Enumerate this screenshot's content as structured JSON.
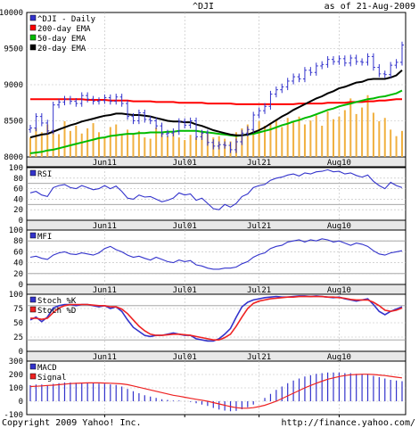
{
  "header": {
    "symbol": "^DJI",
    "as_of": "as of 21-Aug-2009"
  },
  "footer": {
    "copyright": "Copyright 2009 Yahoo! Inc.",
    "url": "http://finance.yahoo.com/"
  },
  "colors": {
    "price": "#3333cc",
    "ema200": "#ff0000",
    "ema50": "#00bb00",
    "ema20": "#000000",
    "volume": "#f0b040",
    "grid": "#bbbbbb",
    "indicator": "#3333cc",
    "signal": "#ee2222",
    "band": "#cccccc"
  },
  "chart_data": [
    {
      "type": "line",
      "panel": "price",
      "legend": [
        "^DJI - Daily",
        "200-day EMA",
        "50-day EMA",
        "20-day EMA"
      ],
      "x_ticks": [
        "Jun11",
        "Jul01",
        "Jul21",
        "Aug10"
      ],
      "ylim": [
        8000,
        10000
      ],
      "y_ticks": [
        8000,
        8500,
        9000,
        9500,
        10000
      ],
      "grid": true,
      "legend_position": "top-left",
      "series": [
        {
          "name": "^DJI - Daily",
          "style": "ohlc",
          "values": [
            8400,
            8560,
            8470,
            8360,
            8720,
            8760,
            8800,
            8770,
            8740,
            8850,
            8800,
            8770,
            8780,
            8820,
            8770,
            8830,
            8740,
            8560,
            8500,
            8610,
            8520,
            8500,
            8430,
            8320,
            8330,
            8350,
            8490,
            8440,
            8500,
            8280,
            8330,
            8200,
            8150,
            8170,
            8160,
            8100,
            8210,
            8330,
            8380,
            8580,
            8640,
            8700,
            8870,
            8930,
            8970,
            9050,
            9110,
            9080,
            9200,
            9170,
            9260,
            9280,
            9350,
            9320,
            9360,
            9300,
            9370,
            9320,
            9310,
            9390,
            9240,
            9150,
            9140,
            9270,
            9310,
            9550
          ]
        },
        {
          "name": "200-day EMA",
          "values": [
            8800,
            8800,
            8800,
            8800,
            8800,
            8800,
            8800,
            8800,
            8800,
            8800,
            8790,
            8790,
            8790,
            8790,
            8780,
            8780,
            8780,
            8780,
            8770,
            8770,
            8770,
            8770,
            8760,
            8760,
            8760,
            8760,
            8750,
            8750,
            8750,
            8750,
            8750,
            8740,
            8740,
            8740,
            8740,
            8740,
            8730,
            8730,
            8730,
            8730,
            8730,
            8730,
            8730,
            8730,
            8730,
            8730,
            8730,
            8740,
            8740,
            8740,
            8740,
            8740,
            8750,
            8750,
            8750,
            8750,
            8760,
            8760,
            8760,
            8770,
            8770,
            8780,
            8780,
            8790,
            8800,
            8800
          ]
        },
        {
          "name": "50-day EMA",
          "values": [
            8050,
            8060,
            8070,
            8090,
            8100,
            8120,
            8140,
            8160,
            8180,
            8200,
            8220,
            8240,
            8260,
            8270,
            8290,
            8300,
            8310,
            8320,
            8320,
            8330,
            8330,
            8340,
            8340,
            8340,
            8350,
            8350,
            8360,
            8360,
            8360,
            8360,
            8350,
            8340,
            8330,
            8320,
            8310,
            8300,
            8290,
            8300,
            8310,
            8320,
            8340,
            8360,
            8380,
            8410,
            8440,
            8460,
            8490,
            8510,
            8540,
            8560,
            8590,
            8620,
            8650,
            8670,
            8700,
            8720,
            8740,
            8760,
            8780,
            8800,
            8810,
            8830,
            8840,
            8860,
            8880,
            8920
          ]
        },
        {
          "name": "20-day EMA",
          "values": [
            8270,
            8290,
            8310,
            8320,
            8350,
            8380,
            8410,
            8440,
            8460,
            8490,
            8510,
            8530,
            8550,
            8570,
            8580,
            8600,
            8600,
            8590,
            8580,
            8580,
            8570,
            8560,
            8540,
            8520,
            8500,
            8490,
            8490,
            8480,
            8480,
            8450,
            8430,
            8400,
            8370,
            8350,
            8330,
            8310,
            8300,
            8300,
            8310,
            8340,
            8370,
            8410,
            8460,
            8510,
            8560,
            8600,
            8650,
            8690,
            8730,
            8770,
            8810,
            8840,
            8880,
            8910,
            8950,
            8970,
            9000,
            9030,
            9040,
            9070,
            9080,
            9080,
            9080,
            9100,
            9130,
            9200
          ]
        },
        {
          "name": "Volume",
          "values": [
            0.3,
            0.45,
            0.38,
            0.5,
            0.42,
            0.35,
            0.55,
            0.4,
            0.48,
            0.36,
            0.44,
            0.52,
            0.38,
            0.3,
            0.46,
            0.5,
            0.34,
            0.42,
            0.36,
            0.4,
            0.3,
            0.28,
            0.45,
            0.38,
            0.32,
            0.4,
            0.3,
            0.26,
            0.34,
            0.3,
            0.4,
            0.36,
            0.3,
            0.32,
            0.28,
            0.24,
            0.38,
            0.44,
            0.5,
            0.42,
            0.55,
            0.48,
            0.52,
            0.58,
            0.46,
            0.6,
            0.54,
            0.62,
            0.5,
            0.56,
            0.64,
            0.48,
            0.7,
            0.58,
            0.62,
            0.72,
            0.9,
            0.66,
            0.76,
            0.95,
            0.68,
            0.55,
            0.6,
            0.42,
            0.32,
            0.4
          ]
        }
      ]
    },
    {
      "type": "line",
      "panel": "rsi",
      "legend": [
        "RSI"
      ],
      "x_ticks": [
        "Jun11",
        "Jul01",
        "Jul21",
        "Aug10"
      ],
      "ylim": [
        0,
        100
      ],
      "y_ticks": [
        0,
        20,
        40,
        60,
        80,
        100
      ],
      "bands": [
        30,
        70
      ],
      "grid": true,
      "series": [
        {
          "name": "RSI",
          "values": [
            52,
            55,
            48,
            45,
            62,
            66,
            68,
            62,
            60,
            66,
            62,
            58,
            60,
            66,
            60,
            65,
            55,
            42,
            40,
            48,
            44,
            45,
            40,
            35,
            38,
            42,
            52,
            48,
            50,
            38,
            42,
            32,
            22,
            20,
            30,
            25,
            32,
            45,
            50,
            62,
            66,
            68,
            76,
            80,
            82,
            86,
            88,
            84,
            90,
            88,
            92,
            93,
            96,
            92,
            93,
            88,
            90,
            85,
            82,
            86,
            74,
            66,
            60,
            72,
            66,
            62
          ]
        }
      ]
    },
    {
      "type": "line",
      "panel": "mfi",
      "legend": [
        "MFI"
      ],
      "x_ticks": [
        "Jun11",
        "Jul01",
        "Jul21",
        "Aug10"
      ],
      "ylim": [
        0,
        100
      ],
      "y_ticks": [
        0,
        20,
        40,
        60,
        80,
        100
      ],
      "bands": [
        20,
        80
      ],
      "grid": true,
      "series": [
        {
          "name": "MFI",
          "values": [
            50,
            52,
            48,
            46,
            54,
            58,
            60,
            56,
            55,
            58,
            56,
            54,
            58,
            66,
            70,
            64,
            60,
            54,
            50,
            52,
            48,
            45,
            50,
            46,
            42,
            40,
            45,
            42,
            44,
            36,
            34,
            30,
            28,
            28,
            30,
            30,
            32,
            38,
            42,
            50,
            55,
            58,
            66,
            70,
            72,
            78,
            80,
            82,
            78,
            82,
            80,
            84,
            82,
            78,
            80,
            76,
            72,
            76,
            74,
            70,
            62,
            56,
            54,
            58,
            60,
            62
          ]
        }
      ]
    },
    {
      "type": "line",
      "panel": "stoch",
      "legend": [
        "Stoch %K",
        "Stoch %D"
      ],
      "x_ticks": [
        "Jun11",
        "Jul01",
        "Jul21",
        "Aug10"
      ],
      "ylim": [
        0,
        100
      ],
      "y_ticks": [
        0,
        25,
        50,
        75,
        100
      ],
      "bands": [
        20,
        80
      ],
      "grid": true,
      "series": [
        {
          "name": "Stoch %K",
          "values": [
            55,
            60,
            52,
            60,
            76,
            80,
            82,
            82,
            80,
            82,
            82,
            80,
            78,
            80,
            75,
            78,
            70,
            55,
            42,
            35,
            28,
            26,
            28,
            28,
            30,
            32,
            30,
            28,
            28,
            22,
            20,
            18,
            18,
            22,
            30,
            40,
            60,
            78,
            86,
            90,
            92,
            94,
            95,
            96,
            95,
            95,
            96,
            97,
            97,
            96,
            97,
            96,
            95,
            94,
            95,
            92,
            90,
            88,
            90,
            92,
            82,
            70,
            64,
            70,
            74,
            78
          ]
        },
        {
          "name": "Stoch %D",
          "values": [
            58,
            58,
            56,
            58,
            68,
            76,
            80,
            82,
            82,
            82,
            82,
            81,
            80,
            80,
            78,
            78,
            74,
            66,
            55,
            44,
            36,
            30,
            28,
            28,
            29,
            30,
            30,
            29,
            28,
            26,
            24,
            22,
            20,
            20,
            24,
            30,
            44,
            60,
            75,
            84,
            88,
            90,
            92,
            93,
            94,
            95,
            95,
            96,
            96,
            96,
            96,
            96,
            95,
            95,
            94,
            93,
            91,
            90,
            90,
            90,
            86,
            80,
            72,
            70,
            72,
            76
          ]
        }
      ]
    },
    {
      "type": "bar",
      "panel": "macd",
      "legend": [
        "MACD",
        "Signal"
      ],
      "x_ticks": [
        "Jun11",
        "Jul01",
        "Jul21",
        "Aug10"
      ],
      "ylim": [
        -100,
        300
      ],
      "y_ticks": [
        -100,
        0,
        100,
        200,
        300
      ],
      "grid": true,
      "series": [
        {
          "name": "MACD",
          "values": [
            120,
            125,
            125,
            120,
            130,
            135,
            140,
            140,
            138,
            140,
            138,
            135,
            132,
            130,
            126,
            122,
            110,
            92,
            75,
            60,
            45,
            35,
            25,
            15,
            10,
            5,
            5,
            0,
            -5,
            -15,
            -25,
            -35,
            -50,
            -62,
            -70,
            -75,
            -72,
            -60,
            -45,
            -25,
            0,
            25,
            55,
            85,
            110,
            135,
            155,
            170,
            185,
            195,
            205,
            210,
            215,
            215,
            215,
            210,
            210,
            205,
            200,
            200,
            190,
            180,
            170,
            160,
            155,
            150
          ]
        },
        {
          "name": "Signal",
          "values": [
            110,
            112,
            115,
            118,
            120,
            124,
            128,
            132,
            134,
            136,
            137,
            137,
            137,
            136,
            135,
            133,
            130,
            124,
            115,
            105,
            95,
            85,
            75,
            65,
            55,
            45,
            38,
            30,
            22,
            15,
            8,
            0,
            -10,
            -20,
            -30,
            -40,
            -48,
            -52,
            -52,
            -48,
            -40,
            -30,
            -15,
            0,
            20,
            40,
            60,
            80,
            100,
            118,
            135,
            150,
            165,
            175,
            185,
            192,
            198,
            200,
            202,
            202,
            200,
            196,
            192,
            186,
            180,
            175
          ]
        }
      ]
    }
  ]
}
